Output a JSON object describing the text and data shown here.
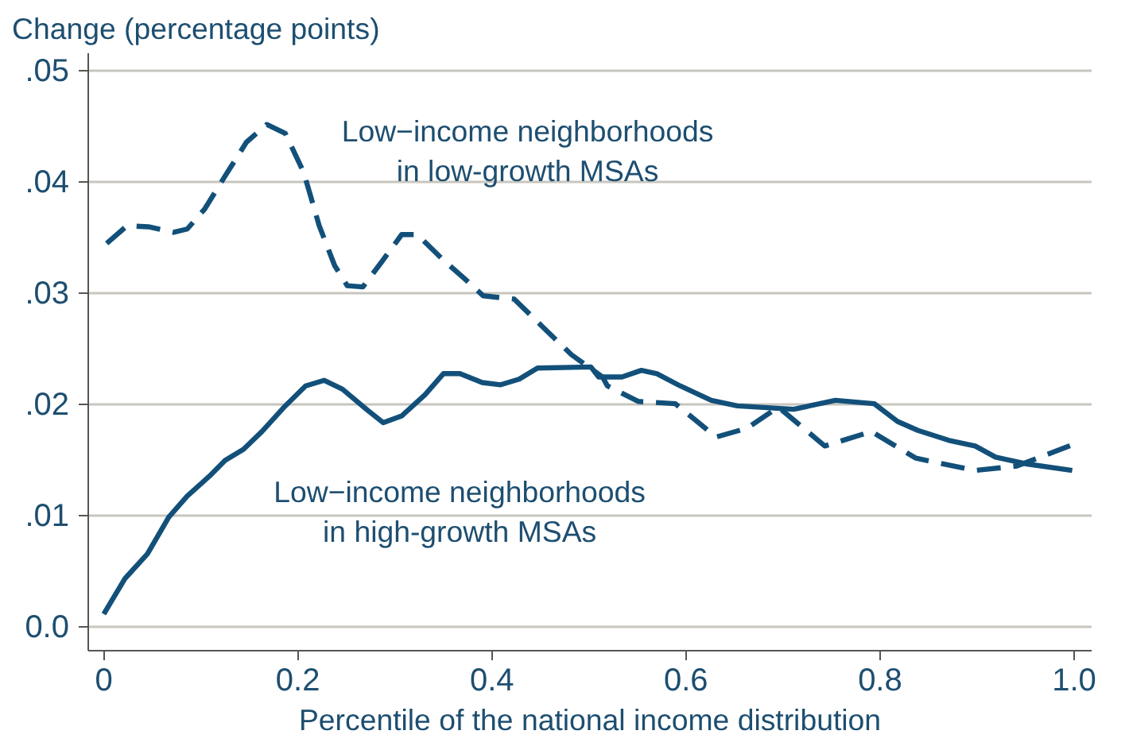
{
  "chart_data": {
    "type": "line",
    "xlabel": "Percentile of the national income distribution",
    "ylabel": "Change (percentage points)",
    "xlim": [
      -0.016,
      1.018
    ],
    "ylim": [
      -0.0022,
      0.0515
    ],
    "xticks": [
      0,
      0.2,
      0.4,
      0.6,
      0.8,
      {
        "value": 1.0,
        "label": "1.0"
      }
    ],
    "yticks": [
      {
        "value": 0,
        "label": "0.0"
      },
      {
        "value": 0.01,
        "label": ".01"
      },
      {
        "value": 0.02,
        "label": ".02"
      },
      {
        "value": 0.03,
        "label": ".03"
      },
      {
        "value": 0.04,
        "label": ".04"
      },
      {
        "value": 0.05,
        "label": ".05"
      }
    ],
    "grid": "y",
    "marker": "none",
    "series": [
      {
        "name": "Low−income neighborhoods\nin high-growth MSAs",
        "color": "#12507a",
        "line_style": "solid",
        "x": [
          0,
          0.022,
          0.045,
          0.067,
          0.086,
          0.109,
          0.125,
          0.144,
          0.163,
          0.187,
          0.208,
          0.227,
          0.246,
          0.272,
          0.288,
          0.307,
          0.331,
          0.35,
          0.367,
          0.39,
          0.409,
          0.428,
          0.447,
          0.502,
          0.51,
          0.534,
          0.554,
          0.57,
          0.594,
          0.626,
          0.653,
          0.711,
          0.754,
          0.794,
          0.818,
          0.839,
          0.871,
          0.898,
          0.919,
          0.95,
          0.998
        ],
        "values": [
          0.0011,
          0.0043,
          0.0065,
          0.0098,
          0.0117,
          0.0135,
          0.0149,
          0.0159,
          0.0175,
          0.0198,
          0.0216,
          0.0221,
          0.0213,
          0.0194,
          0.0183,
          0.0189,
          0.0208,
          0.0227,
          0.0227,
          0.0219,
          0.0217,
          0.0222,
          0.0232,
          0.0233,
          0.0224,
          0.0224,
          0.023,
          0.0227,
          0.0216,
          0.0203,
          0.0198,
          0.0195,
          0.0203,
          0.02,
          0.0184,
          0.0176,
          0.0167,
          0.0162,
          0.0152,
          0.0146,
          0.014
        ]
      },
      {
        "name": "Low−income neighborhoods\nin low-growth MSAs",
        "color": "#12507a",
        "line_style": "dashed",
        "x": [
          0.003,
          0.024,
          0.046,
          0.072,
          0.086,
          0.104,
          0.126,
          0.147,
          0.168,
          0.187,
          0.206,
          0.222,
          0.238,
          0.251,
          0.267,
          0.286,
          0.307,
          0.323,
          0.35,
          0.371,
          0.391,
          0.423,
          0.45,
          0.482,
          0.514,
          0.519,
          0.551,
          0.589,
          0.631,
          0.663,
          0.695,
          0.743,
          0.791,
          0.837,
          0.898,
          0.941,
          0.998
        ],
        "values": [
          0.0344,
          0.036,
          0.0359,
          0.0354,
          0.0357,
          0.0375,
          0.0406,
          0.0435,
          0.0451,
          0.0443,
          0.0408,
          0.036,
          0.0324,
          0.0306,
          0.0305,
          0.0327,
          0.0352,
          0.0352,
          0.0329,
          0.0313,
          0.0297,
          0.0294,
          0.0271,
          0.0244,
          0.0224,
          0.0216,
          0.0202,
          0.02,
          0.017,
          0.0178,
          0.0197,
          0.0162,
          0.0175,
          0.0151,
          0.014,
          0.0144,
          0.0163
        ]
      }
    ]
  }
}
